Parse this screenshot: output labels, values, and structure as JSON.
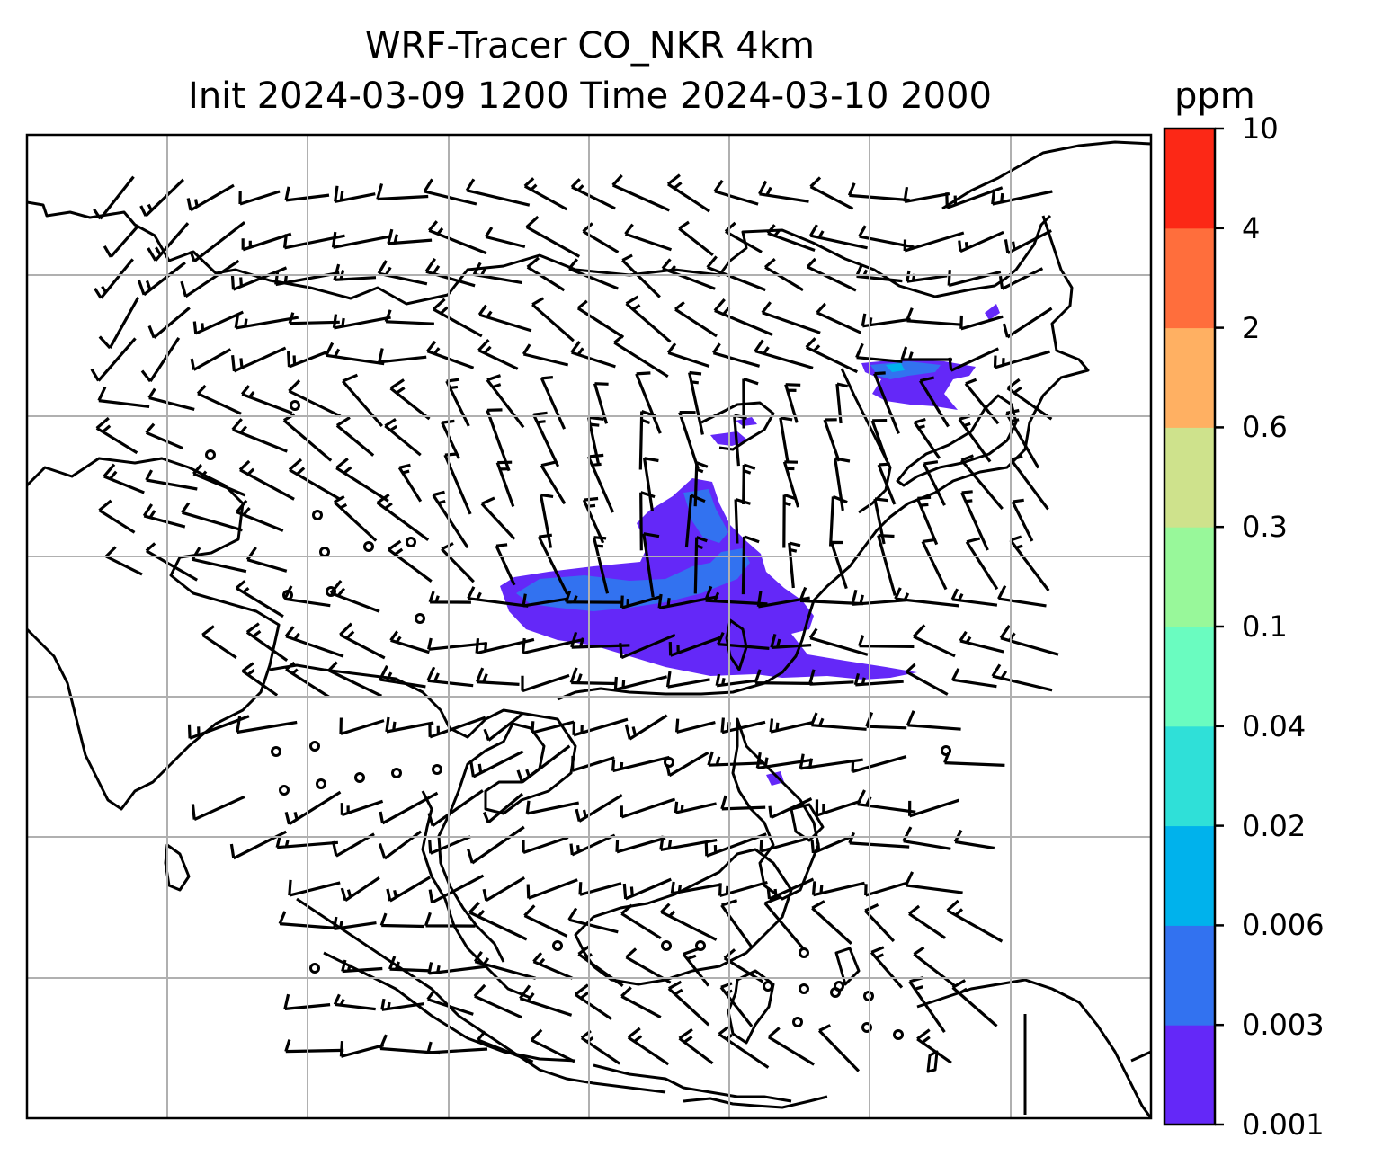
{
  "title": {
    "line1": "WRF-Tracer CO_NKR 4km",
    "line2": "Init 2024-03-09 1200 Time 2024-03-10 2000"
  },
  "colorbar": {
    "units": "ppm",
    "levels": [
      "0.001",
      "0.003",
      "0.006",
      "0.02",
      "0.04",
      "0.1",
      "0.3",
      "0.6",
      "2",
      "4",
      "10"
    ],
    "colors": [
      "#6428f8",
      "#3272f0",
      "#00b2ec",
      "#2fe0d8",
      "#6afcc0",
      "#98f89a",
      "#cee28c",
      "#ffb062",
      "#ff6e3c",
      "#fc2816"
    ]
  },
  "map": {
    "variable": "CO tracer concentration with wind barbs",
    "gridlines": true
  }
}
